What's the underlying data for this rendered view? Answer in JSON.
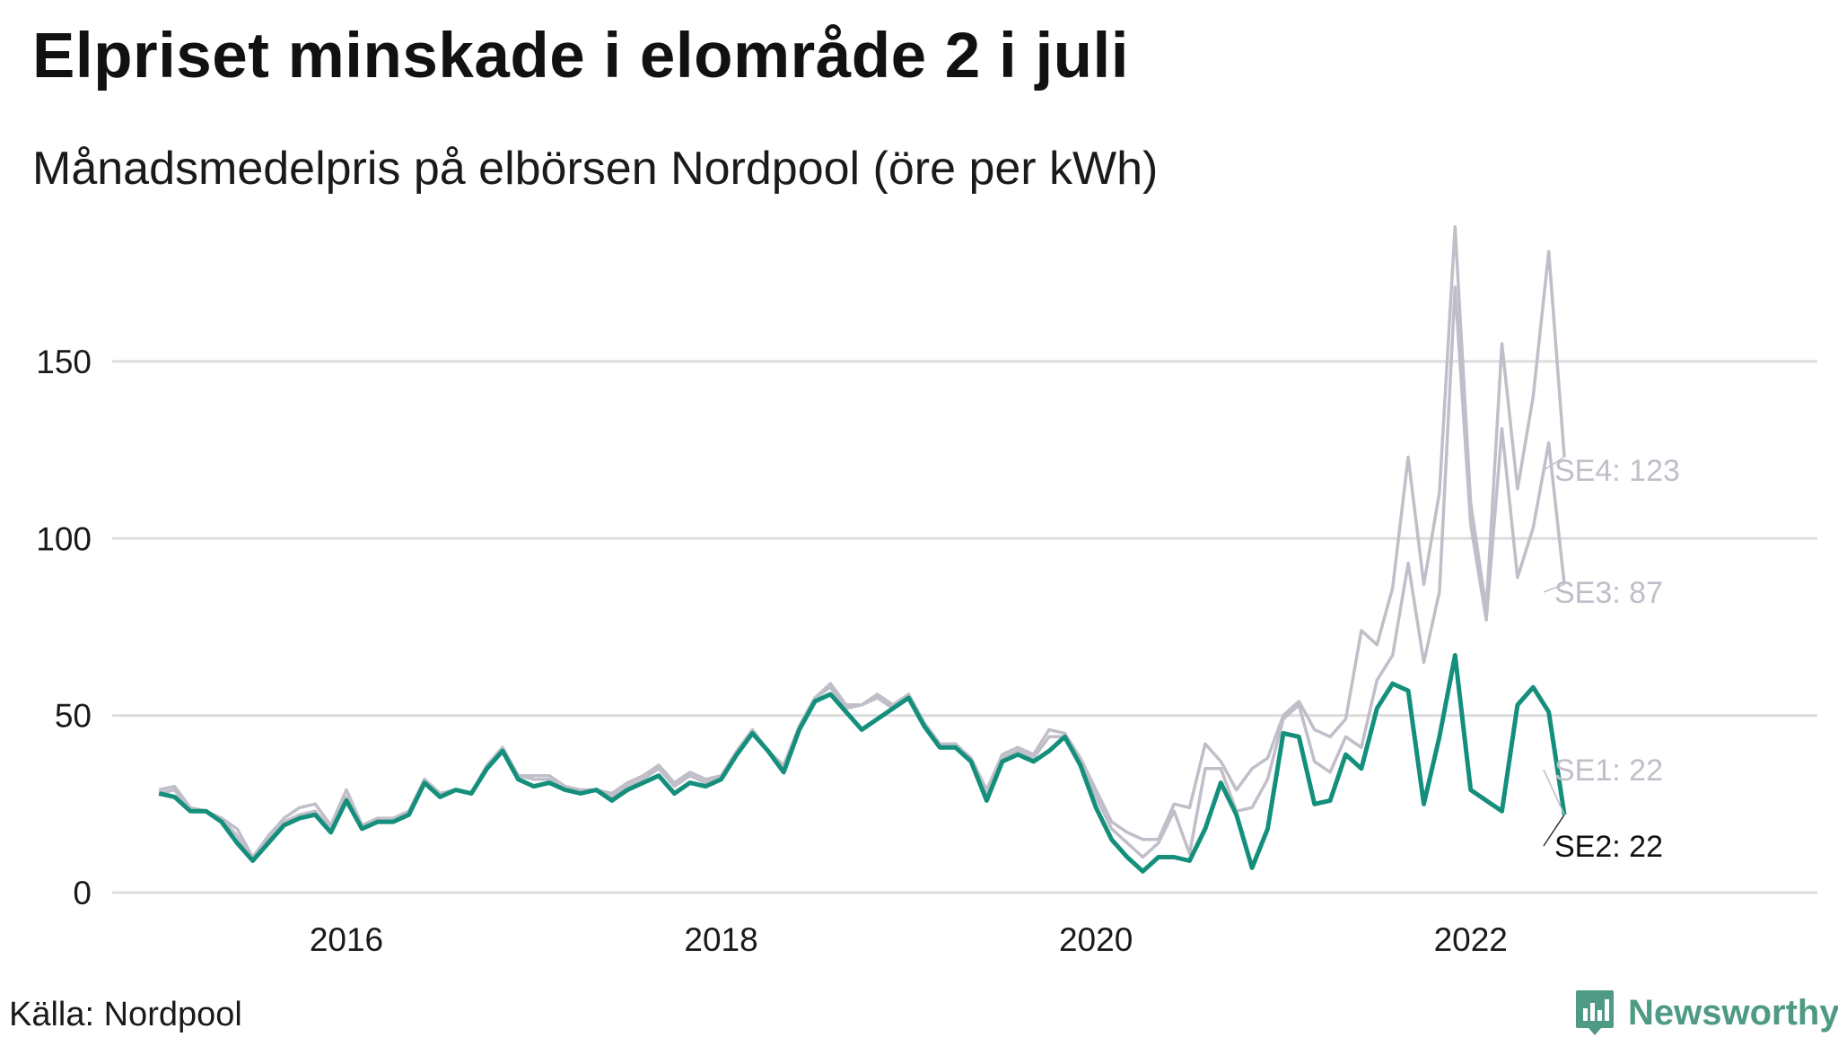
{
  "title": "Elpriset minskade i elområde 2 i juli",
  "subtitle": "Månadsmedelpris på elbörsen Nordpool (öre per kWh)",
  "source": "Källa: Nordpool",
  "brand": {
    "name": "Newsworthy",
    "icon": "newsworthy-logo-icon"
  },
  "colors": {
    "highlight": "#138f7c",
    "muted": "#c0bec8",
    "grid": "#dddddd",
    "text": "#1a1a1a"
  },
  "chart_data": {
    "type": "line",
    "title": "Elpriset minskade i elområde 2 i juli",
    "subtitle": "Månadsmedelpris på elbörsen Nordpool (öre per kWh)",
    "xlabel": "",
    "ylabel": "",
    "x_start": 2015.0,
    "x_step_months": 1,
    "xlim": [
      2014.75,
      2023.85
    ],
    "ylim": [
      0,
      190
    ],
    "yticks": [
      0,
      50,
      100,
      150
    ],
    "ytick_labels": [
      "0",
      "50",
      "100",
      "150"
    ],
    "xticks": [
      2016,
      2018,
      2020,
      2022
    ],
    "xtick_labels": [
      "2016",
      "2018",
      "2020",
      "2022"
    ],
    "grid": true,
    "highlight_series": "SE2",
    "series": [
      {
        "name": "SE4",
        "end_label": "SE4: 123",
        "values": [
          29,
          30,
          24,
          23,
          21,
          18,
          10,
          16,
          21,
          24,
          25,
          19,
          29,
          19,
          21,
          21,
          23,
          32,
          28,
          29,
          28,
          36,
          41,
          33,
          33,
          33,
          30,
          29,
          29,
          28,
          31,
          33,
          36,
          31,
          34,
          32,
          33,
          40,
          46,
          40,
          36,
          47,
          55,
          59,
          53,
          53,
          56,
          53,
          56,
          48,
          42,
          42,
          38,
          29,
          39,
          41,
          39,
          46,
          45,
          38,
          29,
          20,
          17,
          15,
          15,
          25,
          24,
          42,
          37,
          29,
          35,
          38,
          50,
          54,
          46,
          44,
          49,
          74,
          70,
          86,
          123,
          87,
          113,
          188,
          110,
          80,
          155,
          114,
          140,
          181,
          123
        ]
      },
      {
        "name": "SE3",
        "end_label": "SE3: 87",
        "values": [
          28,
          29,
          23,
          23,
          21,
          16,
          9,
          15,
          20,
          22,
          23,
          18,
          27,
          18,
          21,
          20,
          22,
          32,
          28,
          29,
          28,
          36,
          41,
          33,
          32,
          32,
          29,
          28,
          29,
          27,
          30,
          32,
          35,
          30,
          33,
          31,
          33,
          40,
          46,
          40,
          35,
          47,
          55,
          58,
          52,
          53,
          55,
          52,
          56,
          48,
          42,
          42,
          37,
          28,
          38,
          40,
          38,
          44,
          44,
          37,
          27,
          18,
          14,
          10,
          14,
          23,
          11,
          35,
          35,
          23,
          24,
          32,
          49,
          53,
          37,
          34,
          44,
          41,
          60,
          67,
          93,
          65,
          85,
          171,
          104,
          77,
          131,
          89,
          103,
          127,
          87
        ]
      },
      {
        "name": "SE1",
        "end_label": "SE1: 22",
        "values": [
          28,
          27,
          23,
          23,
          20,
          14,
          9,
          14,
          19,
          21,
          22,
          17,
          26,
          18,
          20,
          20,
          22,
          31,
          27,
          29,
          28,
          35,
          40,
          32,
          30,
          31,
          29,
          28,
          29,
          26,
          29,
          31,
          33,
          28,
          31,
          30,
          32,
          39,
          45,
          40,
          34,
          46,
          54,
          56,
          51,
          46,
          49,
          52,
          55,
          47,
          41,
          41,
          37,
          26,
          37,
          39,
          37,
          40,
          44,
          36,
          24,
          15,
          10,
          6,
          10,
          10,
          9,
          18,
          31,
          22,
          7,
          18,
          45,
          44,
          25,
          26,
          39,
          35,
          52,
          59,
          57,
          25,
          44,
          67,
          29,
          26,
          23,
          53,
          58,
          51,
          22
        ]
      },
      {
        "name": "SE2",
        "end_label": "SE2: 22",
        "values": [
          28,
          27,
          23,
          23,
          20,
          14,
          9,
          14,
          19,
          21,
          22,
          17,
          26,
          18,
          20,
          20,
          22,
          31,
          27,
          29,
          28,
          35,
          40,
          32,
          30,
          31,
          29,
          28,
          29,
          26,
          29,
          31,
          33,
          28,
          31,
          30,
          32,
          39,
          45,
          40,
          34,
          46,
          54,
          56,
          51,
          46,
          49,
          52,
          55,
          47,
          41,
          41,
          37,
          26,
          37,
          39,
          37,
          40,
          44,
          36,
          24,
          15,
          10,
          6,
          10,
          10,
          9,
          18,
          31,
          22,
          7,
          18,
          45,
          44,
          25,
          26,
          39,
          35,
          52,
          59,
          57,
          25,
          44,
          67,
          29,
          26,
          23,
          53,
          58,
          51,
          22
        ]
      }
    ]
  }
}
